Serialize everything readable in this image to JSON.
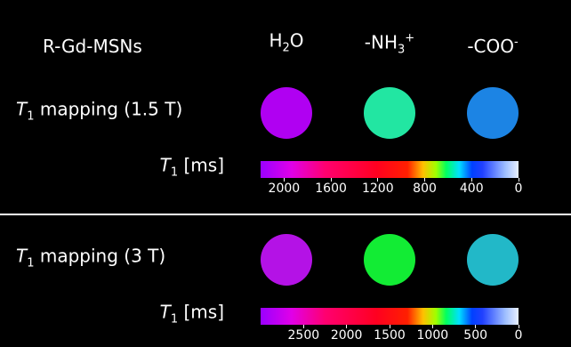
{
  "header": {
    "title": "R-Gd-MSNs",
    "columns": [
      {
        "text": "H",
        "sub": "2",
        "after": "O"
      },
      {
        "text": "-NH",
        "sub": "3",
        "sup": "+"
      },
      {
        "text": "-COO",
        "sup": "-"
      }
    ]
  },
  "panels": [
    {
      "label": {
        "symbol": "T",
        "sub": "1",
        "text": " mapping (1.5 T)"
      },
      "circle_colors": [
        "#b000f2",
        "#22e6a2",
        "#1c84e4"
      ],
      "colorbar": {
        "label": {
          "symbol": "T",
          "sub": "1",
          "text": " [ms]"
        },
        "lim": [
          2200,
          0
        ],
        "ticks": [
          2000,
          1600,
          1200,
          800,
          400,
          0
        ]
      }
    },
    {
      "label": {
        "symbol": "T",
        "sub": "1",
        "text": " mapping (3 T)"
      },
      "circle_colors": [
        "#b412e6",
        "#12ec34",
        "#22b8c8"
      ],
      "colorbar": {
        "label": {
          "symbol": "T",
          "sub": "1",
          "text": " [ms]"
        },
        "lim": [
          3000,
          0
        ],
        "ticks": [
          2500,
          2000,
          1500,
          1000,
          500,
          0
        ]
      }
    }
  ]
}
